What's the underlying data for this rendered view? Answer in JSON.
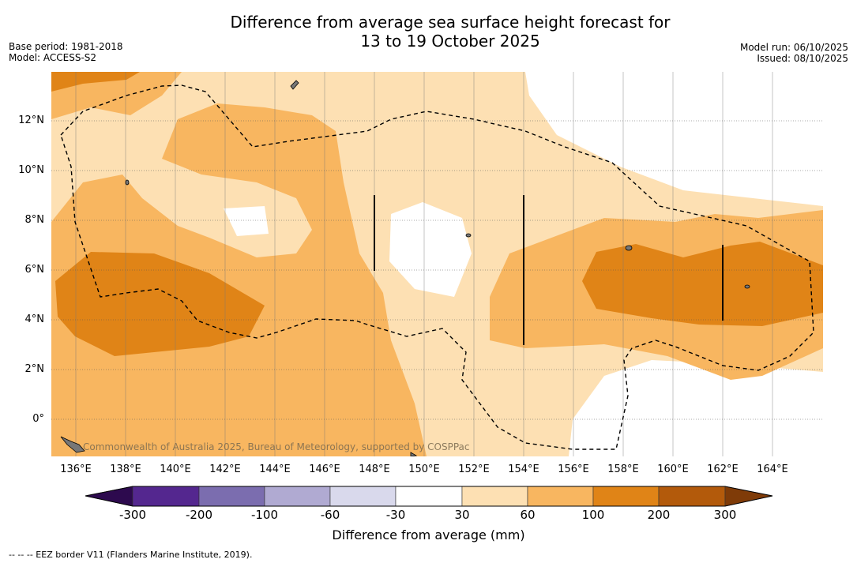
{
  "title_line1": "Difference from average sea surface height forecast for",
  "title_line2": "13 to 19 October 2025",
  "base_period": "Base period: 1981-2018",
  "model": "Model: ACCESS-S2",
  "model_run": "Model run: 06/10/2025",
  "issued": "Issued: 08/10/2025",
  "lat_labels": [
    "12°N",
    "10°N",
    "8°N",
    "6°N",
    "4°N",
    "2°N",
    "0°"
  ],
  "lon_labels": [
    "136°E",
    "138°E",
    "140°E",
    "142°E",
    "144°E",
    "146°E",
    "148°E",
    "150°E",
    "152°E",
    "154°E",
    "156°E",
    "158°E",
    "160°E",
    "162°E",
    "164°E"
  ],
  "copyright": "Commonwealth of Australia 2025, Bureau of Meteorology, supported by COSPPac",
  "colorbar": {
    "ticks": [
      "-300",
      "-200",
      "-100",
      "-60",
      "-30",
      "30",
      "60",
      "100",
      "200",
      "300"
    ],
    "colors": [
      "#2d0a4e",
      "#54278f",
      "#7b6daf",
      "#b0aad2",
      "#d9d9ec",
      "#ffffff",
      "#fde0b3",
      "#f8b660",
      "#e08417",
      "#b35a0b",
      "#7f3b08"
    ],
    "label": "Difference from average (mm)"
  },
  "footer": "--  --  -- EEZ border V11 (Flanders Marine Institute, 2019)."
}
